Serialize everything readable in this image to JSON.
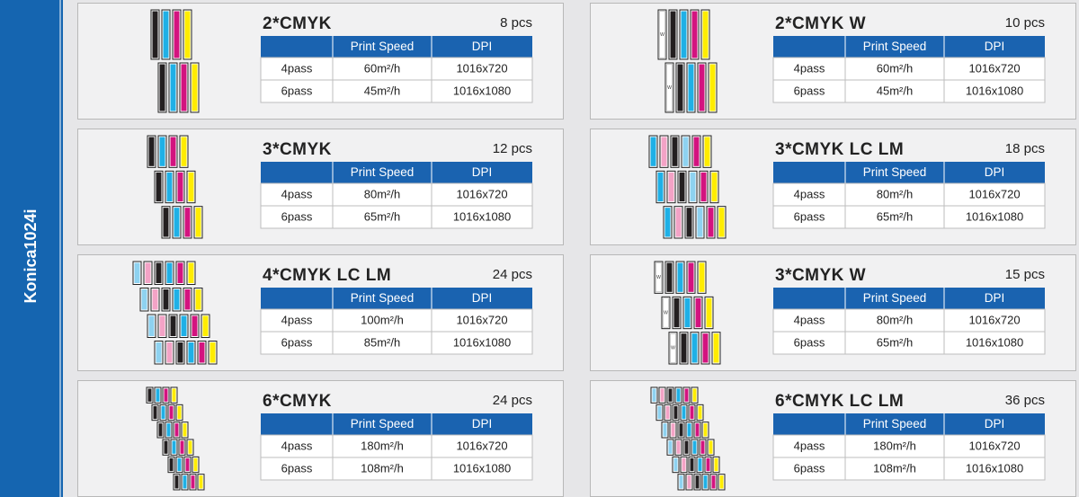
{
  "sidebar": "Konica1024i",
  "cards": [
    {
      "title": "2*CMYK",
      "pcs": "8 pcs",
      "header": [
        "Print Speed",
        "DPI"
      ],
      "rows": [
        [
          "4pass",
          "60m²/h",
          "1016x720"
        ],
        [
          "6pass",
          "45m²/h",
          "1016x1080"
        ]
      ]
    },
    {
      "title": "3*CMYK",
      "pcs": "12 pcs",
      "header": [
        "Print Speed",
        "DPI"
      ],
      "rows": [
        [
          "4pass",
          "80m²/h",
          "1016x720"
        ],
        [
          "6pass",
          "65m²/h",
          "1016x1080"
        ]
      ]
    },
    {
      "title": "4*CMYK LC LM",
      "pcs": "24 pcs",
      "header": [
        "Print Speed",
        "DPI"
      ],
      "rows": [
        [
          "4pass",
          "100m²/h",
          "1016x720"
        ],
        [
          "6pass",
          "85m²/h",
          "1016x1080"
        ]
      ]
    },
    {
      "title": "6*CMYK",
      "pcs": "24 pcs",
      "header": [
        "Print Speed",
        "DPI"
      ],
      "rows": [
        [
          "4pass",
          "180m²/h",
          "1016x720"
        ],
        [
          "6pass",
          "108m²/h",
          "1016x1080"
        ]
      ]
    },
    {
      "title": "2*CMYK W",
      "pcs": "10 pcs",
      "head_label": "W",
      "header": [
        "Print Speed",
        "DPI"
      ],
      "rows": [
        [
          "4pass",
          "60m²/h",
          "1016x720"
        ],
        [
          "6pass",
          "45m²/h",
          "1016x1080"
        ]
      ]
    },
    {
      "title": "3*CMYK LC LM",
      "pcs": "18 pcs",
      "header": [
        "Print Speed",
        "DPI"
      ],
      "rows": [
        [
          "4pass",
          "80m²/h",
          "1016x720"
        ],
        [
          "6pass",
          "65m²/h",
          "1016x1080"
        ]
      ]
    },
    {
      "title": "3*CMYK W",
      "pcs": "15 pcs",
      "head_label": "W",
      "header": [
        "Print Speed",
        "DPI"
      ],
      "rows": [
        [
          "4pass",
          "80m²/h",
          "1016x720"
        ],
        [
          "6pass",
          "65m²/h",
          "1016x1080"
        ]
      ]
    },
    {
      "title": "6*CMYK LC LM",
      "pcs": "36 pcs",
      "header": [
        "Print Speed",
        "DPI"
      ],
      "rows": [
        [
          "4pass",
          "180m²/h",
          "1016x720"
        ],
        [
          "6pass",
          "108m²/h",
          "1016x1080"
        ]
      ]
    }
  ]
}
